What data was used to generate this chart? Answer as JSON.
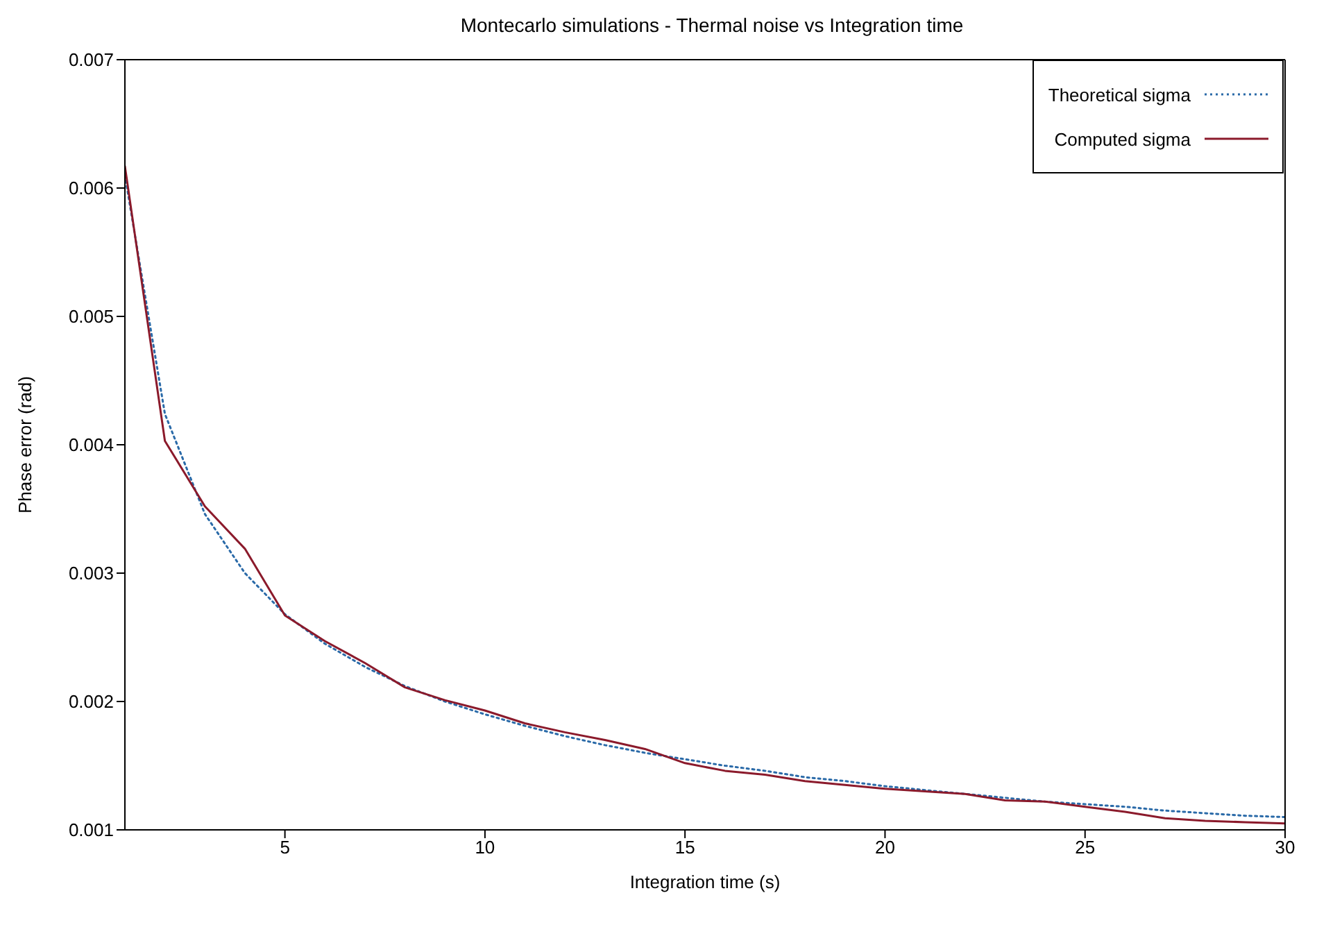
{
  "chart_data": {
    "type": "line",
    "title": "Montecarlo simulations - Thermal noise vs Integration time",
    "xlabel": "Integration time (s)",
    "ylabel": "Phase error (rad)",
    "x": [
      1,
      2,
      3,
      4,
      5,
      6,
      7,
      8,
      9,
      10,
      11,
      12,
      13,
      14,
      15,
      16,
      17,
      18,
      19,
      20,
      21,
      22,
      23,
      24,
      25,
      26,
      27,
      28,
      29,
      30
    ],
    "xlim": [
      1,
      30
    ],
    "xticks": [
      5,
      10,
      15,
      20,
      25,
      30
    ],
    "ylim": [
      0.001,
      0.007
    ],
    "yticks": [
      0.001,
      0.002,
      0.003,
      0.004,
      0.005,
      0.006,
      0.007
    ],
    "grid": false,
    "legend": "top right",
    "marker": "none",
    "series": [
      {
        "name": "Theoretical sigma",
        "color": "#2a6aa8",
        "line_style": "dotted",
        "values": [
          0.0061,
          0.00424,
          0.00346,
          0.003,
          0.00268,
          0.00245,
          0.00227,
          0.00212,
          0.002,
          0.0019,
          0.00181,
          0.00173,
          0.00166,
          0.0016,
          0.00155,
          0.0015,
          0.00146,
          0.00141,
          0.00138,
          0.00134,
          0.00131,
          0.00128,
          0.00125,
          0.00122,
          0.0012,
          0.00118,
          0.00115,
          0.00113,
          0.00111,
          0.0011
        ]
      },
      {
        "name": "Computed sigma",
        "color": "#8b1a2b",
        "line_style": "solid",
        "values": [
          0.00617,
          0.00403,
          0.00352,
          0.00319,
          0.00267,
          0.00247,
          0.0023,
          0.00211,
          0.00201,
          0.00193,
          0.00183,
          0.00176,
          0.0017,
          0.00163,
          0.00152,
          0.00146,
          0.00143,
          0.00138,
          0.00135,
          0.00132,
          0.0013,
          0.00128,
          0.00123,
          0.00122,
          0.00118,
          0.00114,
          0.00109,
          0.00107,
          0.00106,
          0.00105
        ]
      }
    ]
  }
}
